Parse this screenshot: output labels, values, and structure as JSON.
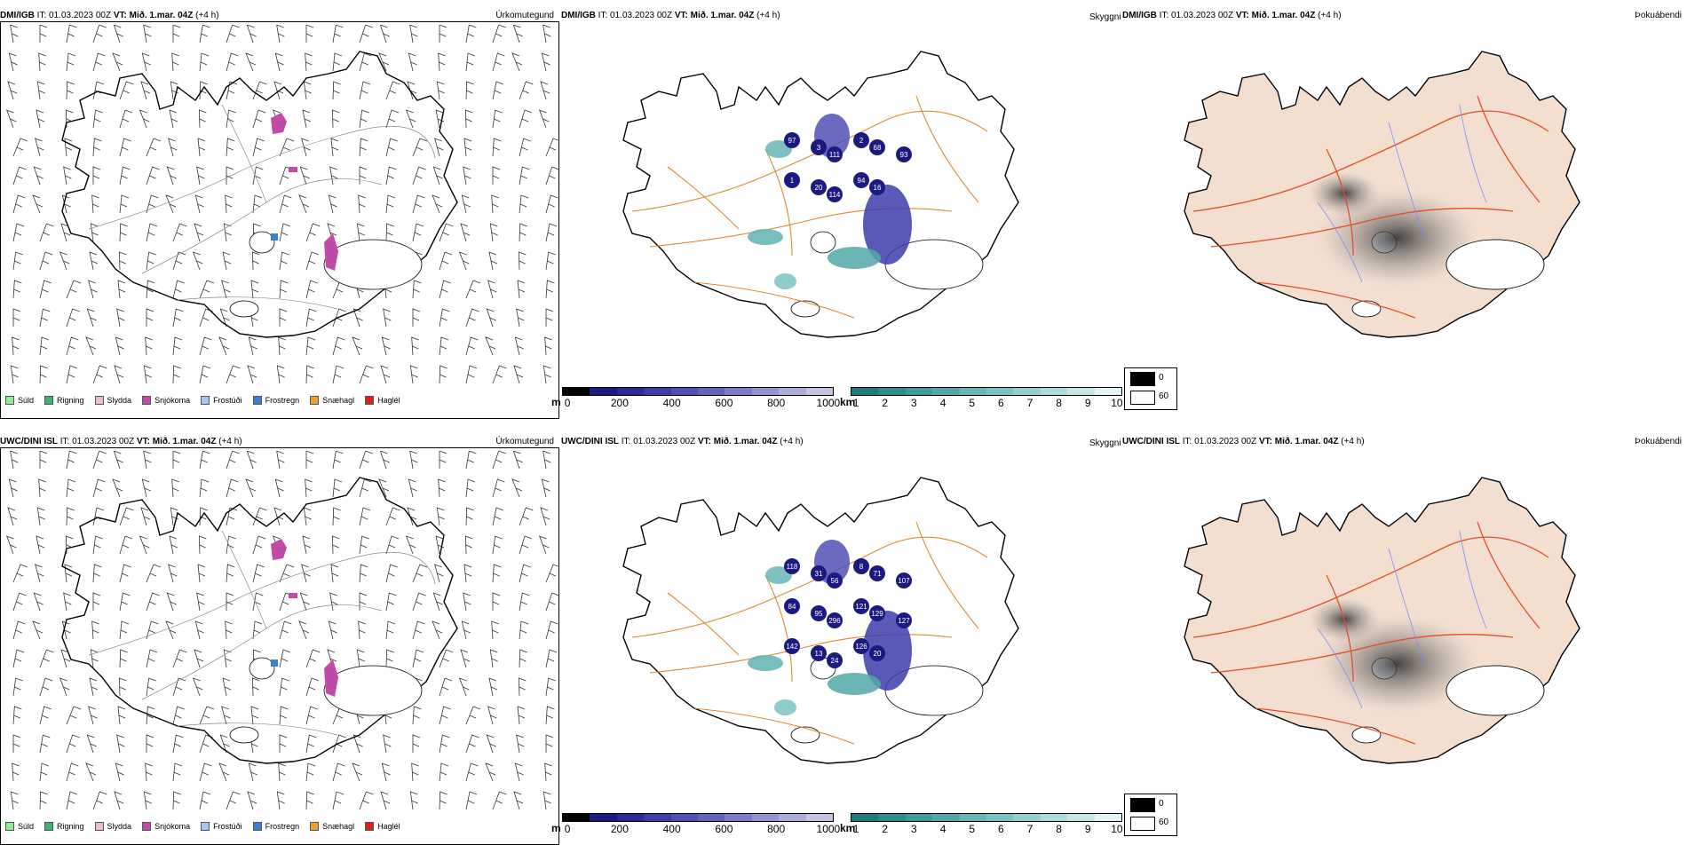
{
  "top": {
    "left": {
      "model": "DMI/IGB",
      "it_label": "IT:",
      "it": "01.03.2023 00Z",
      "vt_label": "VT:",
      "vt": "Mið. 1.mar. 04Z",
      "lead": "(+4 h)",
      "title": "Úrkomutegund"
    },
    "middle": {
      "model": "DMI/IGB",
      "it_label": "IT:",
      "it": "01.03.2023 00Z",
      "vt_label": "VT:",
      "vt": "Mið. 1.mar. 04Z",
      "lead": "(+4 h)",
      "title": "Skyggni",
      "labels": [
        "97",
        "3",
        "111",
        "2",
        "68",
        "93",
        "1",
        "20",
        "114",
        "94",
        "16"
      ]
    },
    "right": {
      "model": "DMI/IGB",
      "it_label": "IT:",
      "it": "01.03.2023 00Z",
      "vt_label": "VT:",
      "vt": "Mið. 1.mar. 04Z",
      "lead": "(+4 h)",
      "title": "Þokuábendi"
    }
  },
  "bottom": {
    "left": {
      "model": "UWC/DINI ISL",
      "it_label": "IT:",
      "it": "01.03.2023 00Z",
      "vt_label": "VT:",
      "vt": "Mið. 1.mar. 04Z",
      "lead": "(+4 h)",
      "title": "Úrkomutegund"
    },
    "middle": {
      "model": "UWC/DINI ISL",
      "it_label": "IT:",
      "it": "01.03.2023 00Z",
      "vt_label": "VT:",
      "vt": "Mið. 1.mar. 04Z",
      "lead": "(+4 h)",
      "title": "Skyggni",
      "labels": [
        "118",
        "31",
        "56",
        "8",
        "71",
        "107",
        "84",
        "95",
        "296",
        "121",
        "129",
        "127",
        "142",
        "13",
        "24",
        "126",
        "20"
      ]
    },
    "right": {
      "model": "UWC/DINI ISL",
      "it_label": "IT:",
      "it": "01.03.2023 00Z",
      "vt_label": "VT:",
      "vt": "Mið. 1.mar. 04Z",
      "lead": "(+4 h)",
      "title": "Þokuábendi"
    }
  },
  "precip_legend": [
    {
      "label": "Súld",
      "color": "#90ee90"
    },
    {
      "label": "Rigning",
      "color": "#3cb371"
    },
    {
      "label": "Slydda",
      "color": "#f5b8d8"
    },
    {
      "label": "Snjókoma",
      "color": "#c04ca8"
    },
    {
      "label": "Frostúði",
      "color": "#9fc8f0"
    },
    {
      "label": "Frostregn",
      "color": "#3a7fd0"
    },
    {
      "label": "Snæhagl",
      "color": "#f0a030"
    },
    {
      "label": "Haglél",
      "color": "#e02020"
    }
  ],
  "vis_m_scale": {
    "unit": "m",
    "ticks": [
      "0",
      "200",
      "400",
      "600",
      "800",
      "1000"
    ],
    "colors": [
      "#000000",
      "#1a1a80",
      "#2a2a9a",
      "#3c3caa",
      "#5050b4",
      "#6464be",
      "#7c7cc8",
      "#9494d2",
      "#acacdc",
      "#c4c4e6"
    ]
  },
  "vis_km_scale": {
    "unit": "km",
    "ticks": [
      "1",
      "2",
      "3",
      "4",
      "5",
      "6",
      "7",
      "8",
      "9",
      "10"
    ],
    "colors": [
      "#1f7a7a",
      "#2e8b8b",
      "#3f9a9a",
      "#52a8a8",
      "#66b6b6",
      "#7cc3c3",
      "#94cfcf",
      "#addcdc",
      "#c8e8e8",
      "#e2f4f4"
    ]
  },
  "fog_legend": {
    "max": "0",
    "min": "60"
  }
}
